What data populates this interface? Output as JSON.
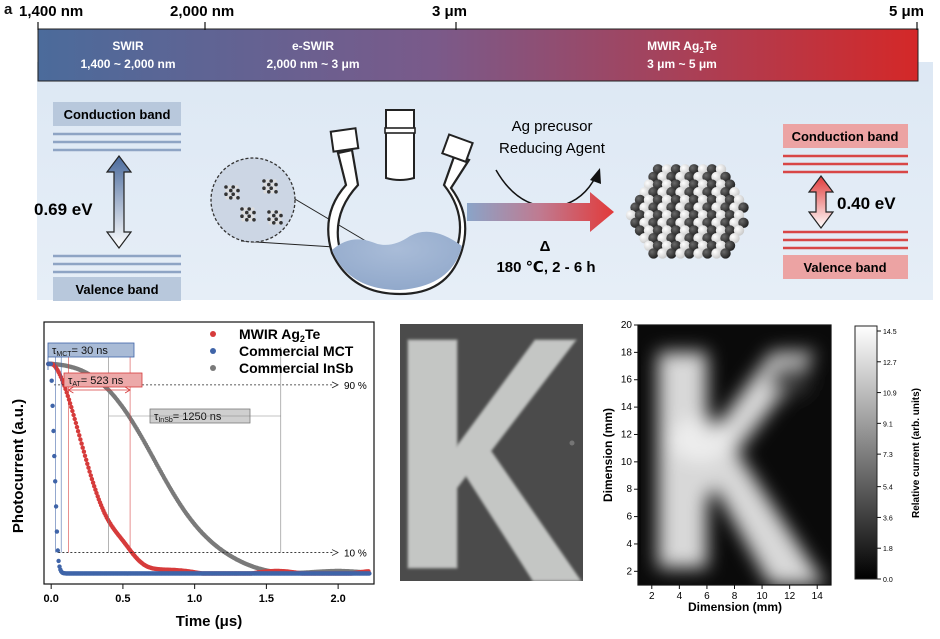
{
  "panel_label": "a",
  "spectrum": {
    "ticks": [
      "1,400 nm",
      "2,000 nm",
      "3 μm",
      "5 μm"
    ],
    "bands": [
      {
        "name": "SWIR",
        "range": "1,400 ~ 2,000 nm"
      },
      {
        "name": "e-SWIR",
        "range": "2,000 nm ~ 3 μm"
      },
      {
        "name": "MWIR Ag",
        "name_sub": "2",
        "name_tail": "Te",
        "range": "3 μm ~ 5 μm"
      }
    ],
    "colors": {
      "start": "#4a6a9a",
      "end": "#d42a2a"
    }
  },
  "left_bands": {
    "conduction": "Conduction band",
    "valence": "Valence band",
    "gap": "0.69 eV"
  },
  "right_bands": {
    "conduction": "Conduction band",
    "valence": "Valence band",
    "gap": "0.40 eV"
  },
  "reaction": {
    "reagent_1": "Ag precusor",
    "reagent_2": "Reducing Agent",
    "delta": "Δ",
    "conditions": "180 ℃, 2 - 6 h"
  },
  "photocurrent_chart": {
    "legend": [
      {
        "label": "MWIR Ag",
        "sub": "2",
        "tail": "Te",
        "color": "#d63b3b"
      },
      {
        "label": "Commercial MCT",
        "color": "#3f64a8"
      },
      {
        "label": "Commercial InSb",
        "color": "#7a7a7a"
      }
    ],
    "annotations": {
      "mct": {
        "sym": "τ",
        "sub": "MCT",
        "text": "= 30 ns"
      },
      "at": {
        "sym": "τ",
        "sub": "AT",
        "text": "= 523 ns"
      },
      "insb": {
        "sym": "τ",
        "sub": "InSb",
        "text": "= 1250 ns"
      },
      "level_high": "90 %",
      "level_low": "10 %"
    }
  },
  "chart_data": [
    {
      "type": "scatter",
      "xlabel": "Time (μs)",
      "ylabel": "Photocurrent (a.u.)",
      "xlim": [
        -0.05,
        2.25
      ],
      "ylim": [
        -0.05,
        1.2
      ],
      "x_ticks": [
        0.0,
        0.5,
        1.0,
        1.5,
        2.0
      ],
      "y_tick_labels": [
        "(a.u.)"
      ],
      "series": [
        {
          "name": "MWIR Ag2Te",
          "decay": "ag2te"
        },
        {
          "name": "Commercial MCT",
          "decay": "mct"
        },
        {
          "name": "Commercial InSb",
          "decay": "insb"
        }
      ],
      "markers": {
        "t90": [
          0.04,
          0.12,
          0.08
        ],
        "t10": [
          0.07,
          0.55,
          1.6
        ]
      }
    },
    {
      "type": "heatmap",
      "xlabel": "Dimension (mm)",
      "ylabel": "Dimension (mm)",
      "xlim": [
        1,
        15
      ],
      "ylim": [
        1,
        20
      ],
      "x_ticks": [
        2,
        4,
        6,
        8,
        10,
        12,
        14
      ],
      "y_ticks": [
        2,
        4,
        6,
        8,
        10,
        12,
        14,
        16,
        18,
        20
      ],
      "colorbar": {
        "label": "Relative current (arb. units)",
        "ticks": [
          0.0,
          1.8,
          3.6,
          5.4,
          7.3,
          9.1,
          10.9,
          12.7,
          14.5
        ]
      }
    }
  ]
}
